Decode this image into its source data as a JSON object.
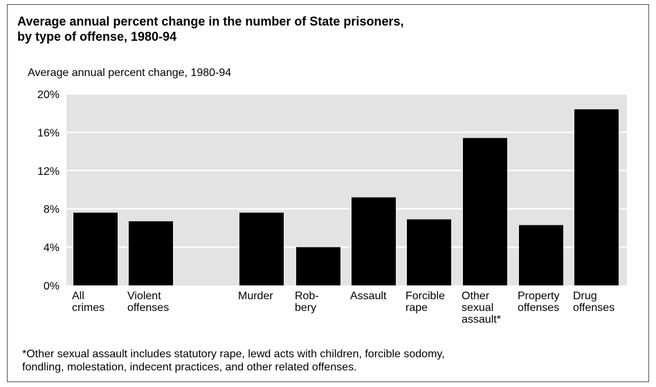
{
  "title_lines": [
    "Average annual percent change in the number of State prisoners,",
    "by type of offense, 1980-94"
  ],
  "axis_caption": "Average annual percent change, 1980-94",
  "footnote_lines": [
    "*Other sexual assault includes statutory rape, lewd acts with children, forcible sodomy,",
    "fondling, molestation, indecent practices, and other related offenses."
  ],
  "colors": {
    "bar": "#000000",
    "plot_background": "#e3e3e3",
    "gridline": "#ffffff"
  },
  "chart_data": {
    "type": "bar",
    "title": "Average annual percent change in the number of State prisoners, by type of offense, 1980-94",
    "ylabel": "Average annual percent change, 1980-94",
    "xlabel": "",
    "ylim": [
      0,
      20
    ],
    "yticks": [
      0,
      4,
      8,
      12,
      16,
      20
    ],
    "ytick_labels": [
      "0%",
      "4%",
      "8%",
      "12%",
      "16%",
      "20%"
    ],
    "grid": true,
    "categories": [
      "All crimes",
      "Violent offenses",
      "Murder",
      "Robbery",
      "Assault",
      "Forcible rape",
      "Other sexual assault*",
      "Property offenses",
      "Drug offenses"
    ],
    "category_label_lines": [
      [
        "All",
        "crimes"
      ],
      [
        "Violent",
        "offenses"
      ],
      [
        "Murder"
      ],
      [
        "Rob-",
        "bery"
      ],
      [
        "Assault"
      ],
      [
        "Forcible",
        "rape"
      ],
      [
        "Other",
        "sexual",
        "assault*"
      ],
      [
        "Property",
        "offenses"
      ],
      [
        "Drug",
        "offenses"
      ]
    ],
    "values": [
      7.6,
      6.7,
      7.6,
      4.0,
      9.2,
      6.9,
      15.4,
      6.3,
      18.4
    ]
  }
}
